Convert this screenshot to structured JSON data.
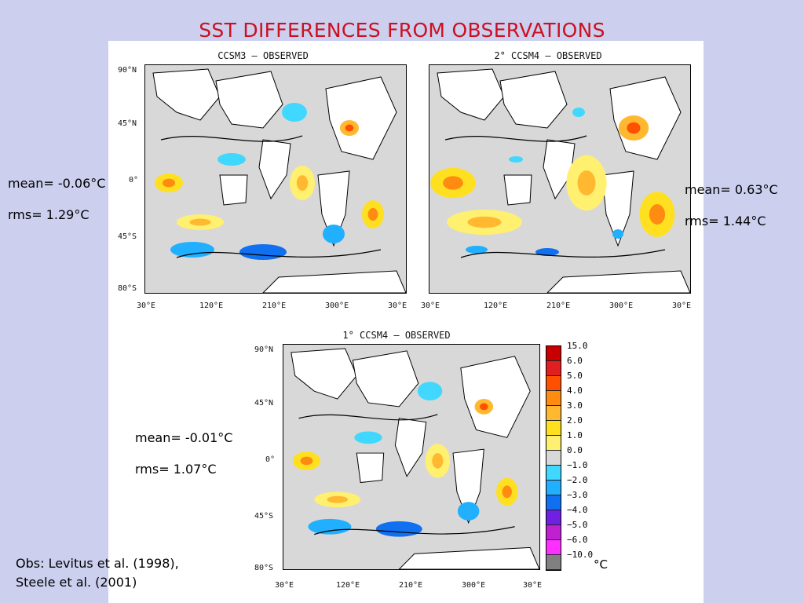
{
  "title": "SST DIFFERENCES FROM OBSERVATIONS",
  "maps": [
    {
      "title": "CCSM3 – OBSERVED",
      "mean": "mean= -0.06°C",
      "rms": "rms= 1.29°C"
    },
    {
      "title": "2° CCSM4 – OBSERVED",
      "mean": "mean= 0.63°C",
      "rms": "rms= 1.44°C"
    },
    {
      "title": "1° CCSM4 – OBSERVED",
      "mean": "mean= -0.01°C",
      "rms": "rms= 1.07°C"
    }
  ],
  "lat_ticks": [
    "90°N",
    "45°N",
    "0°",
    "45°S",
    "80°S"
  ],
  "lon_ticks": [
    "30°E",
    "120°E",
    "210°E",
    "300°E",
    "30°E"
  ],
  "colorbar": {
    "labels": [
      "15.0",
      "6.0",
      "5.0",
      "4.0",
      "3.0",
      "2.0",
      "1.0",
      "0.0",
      "−1.0",
      "−2.0",
      "−3.0",
      "−4.0",
      "−5.0",
      "−6.0",
      "−10.0"
    ],
    "colors": [
      "#c80000",
      "#e02020",
      "#ff5000",
      "#ff8c10",
      "#ffb830",
      "#ffe020",
      "#fff070",
      "#d8d8d8",
      "#40d8ff",
      "#20b0ff",
      "#1070f0",
      "#7020e0",
      "#c020d0",
      "#ff30ff",
      "#808080"
    ],
    "unit": "°C"
  },
  "citation": {
    "line1": "Obs: Levitus et al. (1998),",
    "line2": "Steele et al. (2001)"
  }
}
